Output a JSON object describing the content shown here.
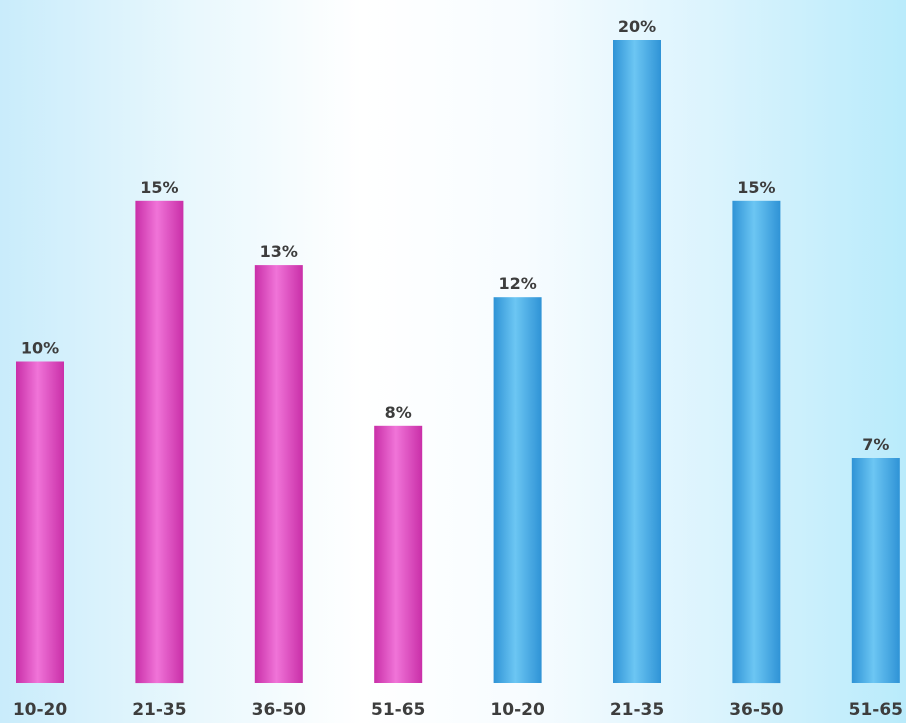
{
  "chart_data": {
    "type": "bar",
    "categories": [
      "10-20",
      "21-35",
      "36-50",
      "51-65",
      "10-20",
      "21-35",
      "36-50",
      "51-65"
    ],
    "values": [
      10,
      15,
      13,
      8,
      12,
      20,
      15,
      7
    ],
    "value_labels": [
      "10%",
      "15%",
      "13%",
      "8%",
      "12%",
      "20%",
      "15%",
      "7%"
    ],
    "bar_colors": [
      "#e85bc8",
      "#e85bc8",
      "#e85bc8",
      "#e85bc8",
      "#41a9e6",
      "#41a9e6",
      "#41a9e6",
      "#41a9e6"
    ],
    "ylim": [
      0,
      20
    ],
    "grid": false,
    "legend": "none"
  }
}
